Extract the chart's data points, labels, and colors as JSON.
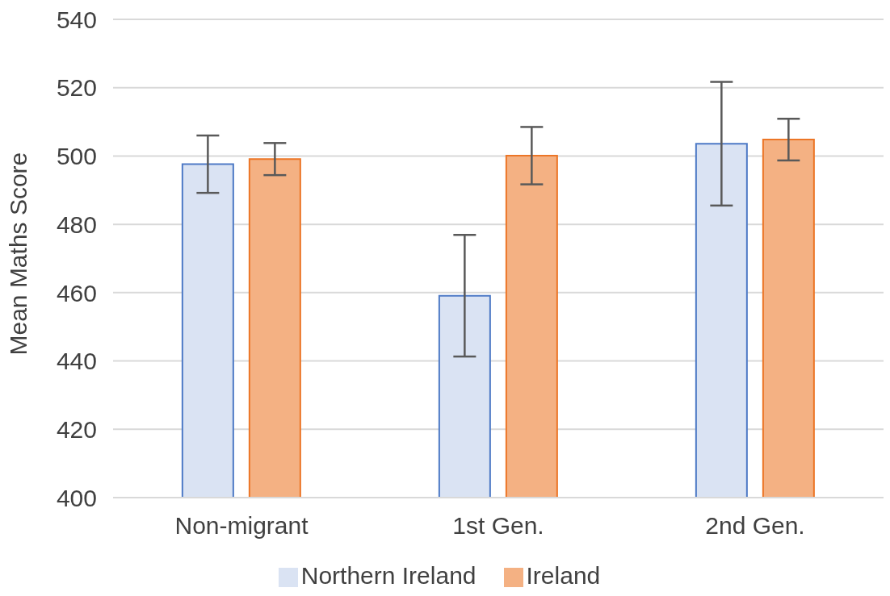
{
  "chart_data": {
    "type": "bar",
    "ylabel": "Mean Maths Score",
    "categories": [
      "Non-migrant",
      "1st Gen.",
      "2nd Gen."
    ],
    "series": [
      {
        "name": "Northern Ireland",
        "color": "#dae3f3",
        "values": [
          497.6,
          459.1,
          503.6
        ],
        "errors": [
          8.4,
          17.8,
          18.1
        ]
      },
      {
        "name": "Ireland",
        "color": "#f4b183",
        "values": [
          499.1,
          500.1,
          504.8
        ],
        "errors": [
          4.7,
          8.4,
          6.1
        ]
      }
    ],
    "ylim": [
      400,
      540
    ],
    "yticks": [
      400,
      420,
      440,
      460,
      480,
      500,
      520,
      540
    ],
    "grid": "y",
    "legend": "bottom"
  }
}
